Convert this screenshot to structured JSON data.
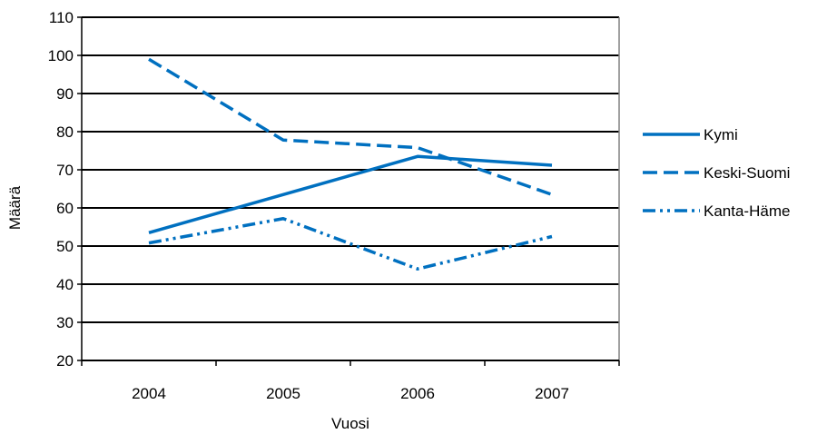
{
  "chart_data": {
    "type": "line",
    "title": "",
    "xlabel": "Vuosi",
    "ylabel": "Määrä",
    "categories": [
      "2004",
      "2005",
      "2006",
      "2007"
    ],
    "ylim": [
      20,
      110
    ],
    "yticks": [
      20,
      30,
      40,
      50,
      60,
      70,
      80,
      90,
      100,
      110
    ],
    "grid": true,
    "legend_position": "right",
    "series": [
      {
        "name": "Kymi",
        "values": [
          53.5,
          63.5,
          73.5,
          71.2
        ],
        "dash": "solid"
      },
      {
        "name": "Keski-Suomi",
        "values": [
          99,
          77.8,
          75.8,
          63.5
        ],
        "dash": "dashed"
      },
      {
        "name": "Kanta-Häme",
        "values": [
          50.8,
          57.2,
          44,
          52.5
        ],
        "dash": "dash-dot-dot"
      }
    ],
    "colors": {
      "line": "#0070C0",
      "grid": "#000000"
    }
  }
}
